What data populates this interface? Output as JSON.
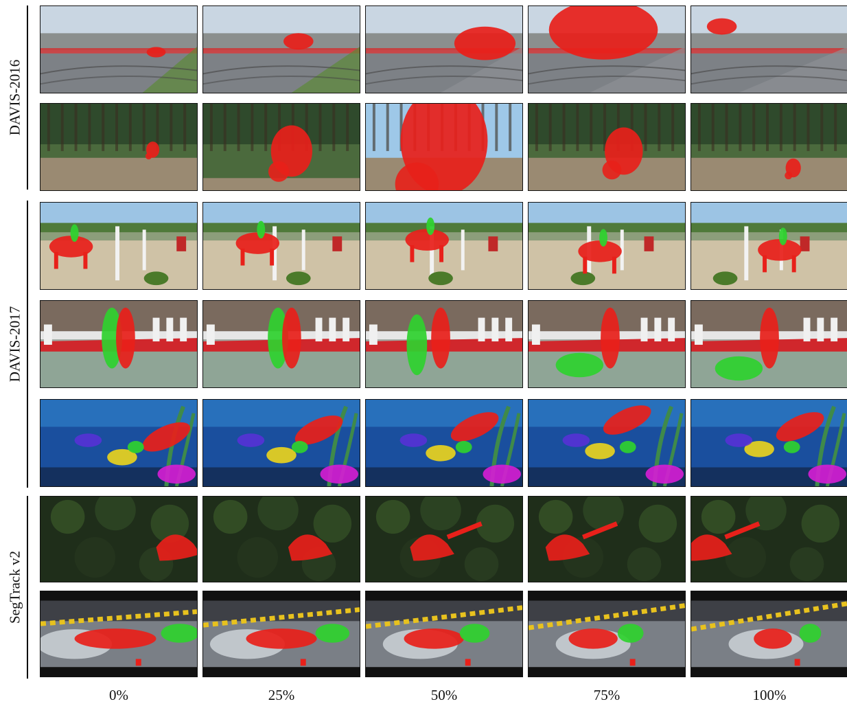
{
  "groups": [
    {
      "label": "DAVIS-2016"
    },
    {
      "label": "DAVIS-2017"
    },
    {
      "label": "SegTrack v2"
    }
  ],
  "columns": [
    {
      "label": "0%"
    },
    {
      "label": "25%"
    },
    {
      "label": "50%"
    },
    {
      "label": "75%"
    },
    {
      "label": "100%"
    }
  ],
  "rows": [
    {
      "scene": "car-race",
      "group": 0
    },
    {
      "scene": "motocross",
      "group": 0
    },
    {
      "scene": "horse-jump",
      "group": 1
    },
    {
      "scene": "judo",
      "group": 1
    },
    {
      "scene": "aquarium-fish",
      "group": 1
    },
    {
      "scene": "frog",
      "group": 2
    },
    {
      "scene": "drift-cars",
      "group": 2
    }
  ],
  "colors": {
    "mask_red": "#e8201a",
    "mask_green": "#2fd12f",
    "mask_yellow": "#e8d21e",
    "mask_magenta": "#d21ed2",
    "mask_purple": "#5a2fd8"
  }
}
